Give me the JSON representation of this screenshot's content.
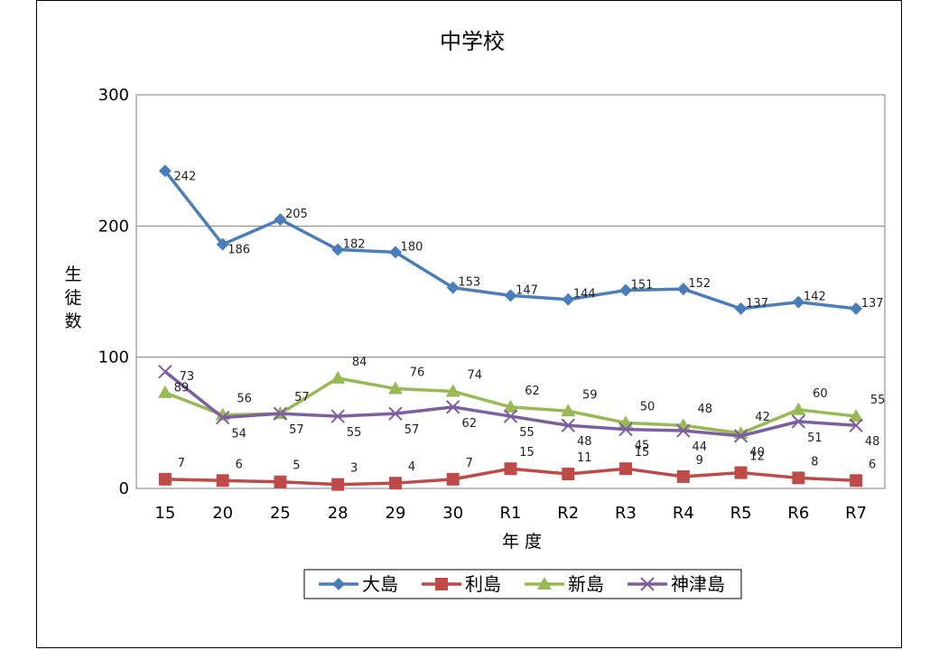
{
  "chart_data": {
    "type": "line",
    "title": "中学校",
    "xlabel": "年 度",
    "ylabel": "生徒数",
    "ylabel_chars": [
      "生",
      "徒",
      "数"
    ],
    "ylim": [
      0,
      300
    ],
    "yticks": [
      0,
      100,
      200,
      300
    ],
    "grid": true,
    "legend_position": "bottom",
    "categories": [
      "15",
      "20",
      "25",
      "28",
      "29",
      "30",
      "R1",
      "R2",
      "R3",
      "R4",
      "R5",
      "R6",
      "R7"
    ],
    "series": [
      {
        "name": "大島",
        "color": "#4A7EBB",
        "marker": "diamond",
        "values": [
          242,
          186,
          205,
          182,
          180,
          153,
          147,
          144,
          151,
          152,
          137,
          142,
          137
        ]
      },
      {
        "name": "利島",
        "color": "#BE4B48",
        "marker": "square",
        "values": [
          7,
          6,
          5,
          3,
          4,
          7,
          15,
          11,
          15,
          9,
          12,
          8,
          6
        ]
      },
      {
        "name": "新島",
        "color": "#98B954",
        "marker": "triangle",
        "values": [
          73,
          56,
          57,
          84,
          76,
          74,
          62,
          59,
          50,
          48,
          42,
          60,
          55
        ]
      },
      {
        "name": "神津島",
        "color": "#7D5FA0",
        "marker": "x",
        "values": [
          89,
          54,
          57,
          55,
          57,
          62,
          55,
          48,
          45,
          44,
          40,
          51,
          48
        ]
      }
    ]
  }
}
